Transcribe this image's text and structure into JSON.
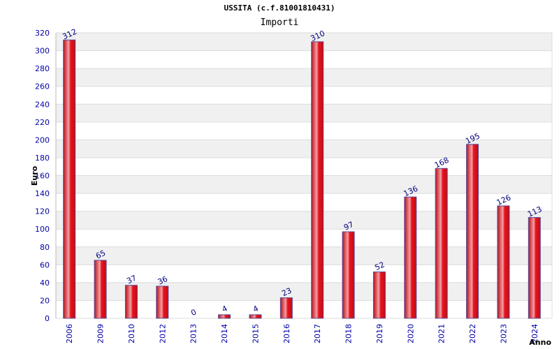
{
  "chart_data": {
    "type": "bar",
    "title": "USSITA (c.f.81001810431)",
    "subtitle": "Importi",
    "xlabel": "Anno",
    "ylabel": "Euro",
    "ylim": [
      0,
      320
    ],
    "y_ticks": [
      0,
      20,
      40,
      60,
      80,
      100,
      120,
      140,
      160,
      180,
      200,
      220,
      240,
      260,
      280,
      300,
      320
    ],
    "grid": true,
    "categories": [
      "2006",
      "2009",
      "2010",
      "2012",
      "2013",
      "2014",
      "2015",
      "2016",
      "2017",
      "2018",
      "2019",
      "2020",
      "2021",
      "2022",
      "2023",
      "2024"
    ],
    "values": [
      312,
      65,
      37,
      36,
      0,
      4,
      4,
      23,
      310,
      97,
      52,
      136,
      168,
      195,
      126,
      113
    ],
    "colors": {
      "bar": "#e8141e",
      "bar_highlight": "#f4a0a4",
      "bar_edge": "#5a4a9a",
      "tick_text": "#0000aa",
      "data_label": "#000080",
      "grid_band": "#f0f0f0"
    }
  }
}
